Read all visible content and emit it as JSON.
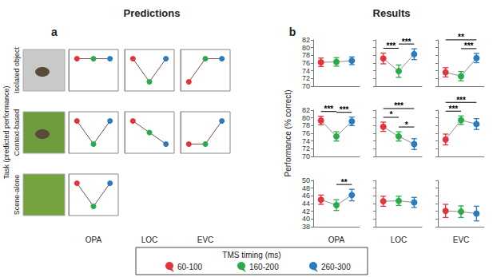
{
  "panels": [
    {
      "letter": "a",
      "title": "Predictions"
    },
    {
      "letter": "b",
      "title": "Results"
    }
  ],
  "row_axis_label": "Task (predicted performance)",
  "results_ylabel": "Performance (% correct)",
  "tasks": [
    "Isolated object",
    "Context-based",
    "Scene-alone"
  ],
  "regions": [
    "OPA",
    "LOC",
    "EVC"
  ],
  "legend_title": "TMS timing (ms)",
  "chart_data": [
    {
      "type": "line",
      "panel": "a",
      "task": "Isolated object",
      "region": "OPA",
      "categories": [
        "60-100",
        "160-200",
        "260-300"
      ],
      "values": [
        1,
        1,
        1
      ],
      "colors": [
        "#e5333b",
        "#2aab4a",
        "#2a7bbf"
      ],
      "ylim": [
        -0.4,
        1.4
      ],
      "tick_labels": false,
      "marker": "circle",
      "line_style": "solid"
    },
    {
      "type": "line",
      "panel": "a",
      "task": "Isolated object",
      "region": "LOC",
      "categories": [
        "60-100",
        "160-200",
        "260-300"
      ],
      "values": [
        1,
        0,
        1
      ],
      "colors": [
        "#e5333b",
        "#2aab4a",
        "#2a7bbf"
      ],
      "ylim": [
        -0.4,
        1.4
      ],
      "tick_labels": false,
      "marker": "circle",
      "line_style": "solid"
    },
    {
      "type": "line",
      "panel": "a",
      "task": "Isolated object",
      "region": "EVC",
      "categories": [
        "60-100",
        "160-200",
        "260-300"
      ],
      "values": [
        0,
        1,
        1
      ],
      "colors": [
        "#e5333b",
        "#2aab4a",
        "#2a7bbf"
      ],
      "ylim": [
        -0.4,
        1.4
      ],
      "tick_labels": false,
      "marker": "circle",
      "line_style": "solid"
    },
    {
      "type": "line",
      "panel": "a",
      "task": "Context-based",
      "region": "OPA",
      "categories": [
        "60-100",
        "160-200",
        "260-300"
      ],
      "values": [
        1,
        0,
        1
      ],
      "colors": [
        "#e5333b",
        "#2aab4a",
        "#2a7bbf"
      ],
      "ylim": [
        -0.4,
        1.4
      ],
      "tick_labels": false,
      "marker": "circle",
      "line_style": "solid"
    },
    {
      "type": "line",
      "panel": "a",
      "task": "Context-based",
      "region": "LOC",
      "categories": [
        "60-100",
        "160-200",
        "260-300"
      ],
      "values": [
        1,
        0.5,
        0
      ],
      "colors": [
        "#e5333b",
        "#2aab4a",
        "#2a7bbf"
      ],
      "ylim": [
        -0.4,
        1.4
      ],
      "tick_labels": false,
      "marker": "circle",
      "line_style": "solid"
    },
    {
      "type": "line",
      "panel": "a",
      "task": "Context-based",
      "region": "EVC",
      "categories": [
        "60-100",
        "160-200",
        "260-300"
      ],
      "values": [
        0,
        0,
        1
      ],
      "colors": [
        "#e5333b",
        "#2aab4a",
        "#2a7bbf"
      ],
      "ylim": [
        -0.4,
        1.4
      ],
      "tick_labels": false,
      "marker": "circle",
      "line_style": "solid"
    },
    {
      "type": "line",
      "panel": "a",
      "task": "Scene-alone",
      "region": "OPA",
      "categories": [
        "60-100",
        "160-200",
        "260-300"
      ],
      "values": [
        1,
        0,
        1
      ],
      "colors": [
        "#e5333b",
        "#2aab4a",
        "#2a7bbf"
      ],
      "ylim": [
        -0.4,
        1.4
      ],
      "tick_labels": false,
      "marker": "circle",
      "line_style": "solid"
    },
    {
      "type": "line",
      "panel": "b",
      "task": "Isolated object",
      "region": "OPA",
      "categories": [
        "60-100",
        "160-200",
        "260-300"
      ],
      "values": [
        76.2,
        76.3,
        76.6
      ],
      "errors": [
        1.1,
        1.1,
        1.0
      ],
      "colors": [
        "#e5333b",
        "#2aab4a",
        "#2a7bbf"
      ],
      "ylim": [
        70,
        82
      ],
      "yticks": [
        70,
        72,
        74,
        76,
        78,
        80,
        82
      ],
      "tick_labels": "y",
      "marker": "circle",
      "line_style": "solid",
      "significance": []
    },
    {
      "type": "line",
      "panel": "b",
      "task": "Isolated object",
      "region": "LOC",
      "categories": [
        "60-100",
        "160-200",
        "260-300"
      ],
      "values": [
        77.2,
        73.9,
        78.3
      ],
      "errors": [
        1.4,
        1.6,
        1.4
      ],
      "colors": [
        "#e5333b",
        "#2aab4a",
        "#2a7bbf"
      ],
      "ylim": [
        70,
        82
      ],
      "yticks": [
        70,
        72,
        74,
        76,
        78,
        80,
        82
      ],
      "tick_labels": false,
      "marker": "circle",
      "line_style": "solid",
      "significance": [
        {
          "from": 0,
          "to": 1,
          "label": "***"
        },
        {
          "from": 1,
          "to": 2,
          "label": "***"
        }
      ]
    },
    {
      "type": "line",
      "panel": "b",
      "task": "Isolated object",
      "region": "EVC",
      "categories": [
        "60-100",
        "160-200",
        "260-300"
      ],
      "values": [
        73.6,
        72.6,
        77.3
      ],
      "errors": [
        1.2,
        1.2,
        1.2
      ],
      "colors": [
        "#e5333b",
        "#2aab4a",
        "#2a7bbf"
      ],
      "ylim": [
        70,
        82
      ],
      "yticks": [
        70,
        72,
        74,
        76,
        78,
        80,
        82
      ],
      "tick_labels": false,
      "marker": "circle",
      "line_style": "solid",
      "significance": [
        {
          "from": 0,
          "to": 2,
          "label": "**"
        },
        {
          "from": 1,
          "to": 2,
          "label": "***"
        }
      ]
    },
    {
      "type": "line",
      "panel": "b",
      "task": "Context-based",
      "region": "OPA",
      "categories": [
        "60-100",
        "160-200",
        "260-300"
      ],
      "values": [
        79.3,
        75.2,
        79.1
      ],
      "errors": [
        1.1,
        1.2,
        1.1
      ],
      "colors": [
        "#e5333b",
        "#2aab4a",
        "#2a7bbf"
      ],
      "ylim": [
        70,
        82
      ],
      "yticks": [
        70,
        72,
        74,
        76,
        78,
        80,
        82
      ],
      "tick_labels": "y",
      "marker": "circle",
      "line_style": "solid",
      "significance": [
        {
          "from": 0,
          "to": 1,
          "label": "***"
        },
        {
          "from": 1,
          "to": 2,
          "label": "***"
        }
      ]
    },
    {
      "type": "line",
      "panel": "b",
      "task": "Context-based",
      "region": "LOC",
      "categories": [
        "60-100",
        "160-200",
        "260-300"
      ],
      "values": [
        77.7,
        75.2,
        73.2
      ],
      "errors": [
        1.2,
        1.2,
        1.4
      ],
      "colors": [
        "#e5333b",
        "#2aab4a",
        "#2a7bbf"
      ],
      "ylim": [
        70,
        82
      ],
      "yticks": [
        70,
        72,
        74,
        76,
        78,
        80,
        82
      ],
      "tick_labels": false,
      "marker": "circle",
      "line_style": "solid",
      "significance": [
        {
          "from": 0,
          "to": 2,
          "label": "***"
        },
        {
          "from": 0,
          "to": 1,
          "label": "*"
        },
        {
          "from": 1,
          "to": 2,
          "label": "*"
        }
      ]
    },
    {
      "type": "line",
      "panel": "b",
      "task": "Context-based",
      "region": "EVC",
      "categories": [
        "60-100",
        "160-200",
        "260-300"
      ],
      "values": [
        74.4,
        79.4,
        78.4
      ],
      "errors": [
        1.4,
        1.1,
        1.4
      ],
      "colors": [
        "#e5333b",
        "#2aab4a",
        "#2a7bbf"
      ],
      "ylim": [
        70,
        82
      ],
      "yticks": [
        70,
        72,
        74,
        76,
        78,
        80,
        82
      ],
      "tick_labels": false,
      "marker": "circle",
      "line_style": "solid",
      "significance": [
        {
          "from": 0,
          "to": 2,
          "label": "***"
        },
        {
          "from": 0,
          "to": 1,
          "label": "***"
        }
      ]
    },
    {
      "type": "line",
      "panel": "b",
      "task": "Scene-alone",
      "region": "OPA",
      "categories": [
        "60-100",
        "160-200",
        "260-300"
      ],
      "values": [
        45.0,
        43.6,
        46.2
      ],
      "errors": [
        1.2,
        1.4,
        1.5
      ],
      "colors": [
        "#e5333b",
        "#2aab4a",
        "#2a7bbf"
      ],
      "ylim": [
        38,
        50
      ],
      "yticks": [
        38,
        40,
        42,
        44,
        46,
        48,
        50
      ],
      "tick_labels": "y",
      "marker": "circle",
      "line_style": "solid",
      "significance": [
        {
          "from": 1,
          "to": 2,
          "label": "**"
        }
      ]
    },
    {
      "type": "line",
      "panel": "b",
      "task": "Scene-alone",
      "region": "LOC",
      "categories": [
        "60-100",
        "160-200",
        "260-300"
      ],
      "values": [
        44.6,
        44.7,
        44.3
      ],
      "errors": [
        1.3,
        1.2,
        1.3
      ],
      "colors": [
        "#e5333b",
        "#2aab4a",
        "#2a7bbf"
      ],
      "ylim": [
        38,
        50
      ],
      "yticks": [
        38,
        40,
        42,
        44,
        46,
        48,
        50
      ],
      "tick_labels": false,
      "marker": "circle",
      "line_style": "solid",
      "significance": []
    },
    {
      "type": "line",
      "panel": "b",
      "task": "Scene-alone",
      "region": "EVC",
      "categories": [
        "60-100",
        "160-200",
        "260-300"
      ],
      "values": [
        42.1,
        41.9,
        41.4
      ],
      "errors": [
        1.7,
        1.5,
        1.9
      ],
      "colors": [
        "#e5333b",
        "#2aab4a",
        "#2a7bbf"
      ],
      "ylim": [
        38,
        50
      ],
      "yticks": [
        38,
        40,
        42,
        44,
        46,
        48,
        50
      ],
      "tick_labels": false,
      "marker": "circle",
      "line_style": "solid",
      "significance": []
    }
  ]
}
